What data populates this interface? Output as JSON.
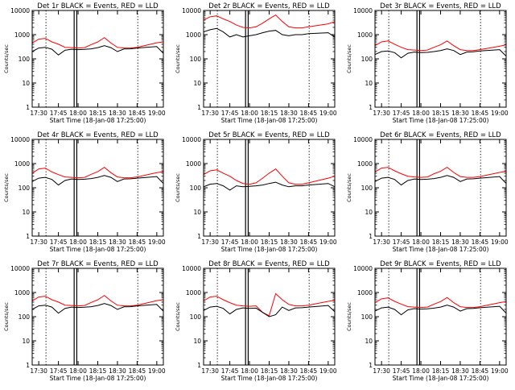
{
  "colors": {
    "background": "#ffffff",
    "events": "#000000",
    "lld": "#ff0000",
    "axis": "#000000"
  },
  "y_tick_labels": [
    "10000",
    "1000",
    "100",
    "10",
    "1"
  ],
  "x_tick_labels": [
    "17:30",
    "17:45",
    "18:00",
    "18:15",
    "18:30",
    "18:45",
    "19:00"
  ],
  "ylabel": "Counts/sec",
  "xlabel": "Start Time (18-Jan-08 17:25:00)",
  "chart_data": [
    {
      "type": "line",
      "title": "Det 1r BLACK = Events, RED = LLD",
      "xlabel": "Start Time (18-Jan-08 17:25:00)",
      "ylabel": "Counts/sec",
      "ylim": [
        1,
        10000
      ],
      "yscale": "log",
      "grid": false,
      "x_minutes_after_1725": [
        0,
        5,
        10,
        15,
        20,
        25,
        30,
        35,
        40,
        45,
        50,
        55,
        60,
        65,
        70,
        75,
        80,
        95,
        100
      ],
      "series": [
        {
          "name": "BLACK = Events",
          "values": [
            200,
            280,
            300,
            250,
            145,
            225,
            250,
            240,
            245,
            260,
            290,
            350,
            290,
            200,
            255,
            260,
            280,
            320,
            170
          ]
        },
        {
          "name": "RED = LLD",
          "values": [
            450,
            650,
            700,
            500,
            400,
            300,
            290,
            280,
            290,
            390,
            500,
            750,
            450,
            300,
            280,
            280,
            300,
            460,
            500
          ]
        }
      ]
    },
    {
      "type": "line",
      "title": "Det 2r BLACK = Events, RED = LLD",
      "xlabel": "Start Time (18-Jan-08 17:25:00)",
      "ylabel": "Counts/sec",
      "ylim": [
        1,
        10000
      ],
      "yscale": "log",
      "grid": false,
      "x_minutes_after_1725": [
        0,
        5,
        10,
        15,
        20,
        25,
        30,
        35,
        40,
        45,
        50,
        55,
        60,
        65,
        70,
        75,
        80,
        95,
        100
      ],
      "series": [
        {
          "name": "BLACK = Events",
          "values": [
            1300,
            1600,
            1800,
            1300,
            800,
            1000,
            800,
            900,
            1000,
            1200,
            1400,
            1500,
            1000,
            900,
            1000,
            1000,
            1100,
            1200,
            800
          ]
        },
        {
          "name": "RED = LLD",
          "values": [
            4000,
            5500,
            6000,
            4500,
            3500,
            2500,
            2000,
            1900,
            2100,
            3000,
            4500,
            6500,
            3500,
            2100,
            1900,
            1900,
            2100,
            2800,
            3500
          ]
        }
      ]
    },
    {
      "type": "line",
      "title": "Det 3r BLACK = Events, RED = LLD",
      "xlabel": "Start Time (18-Jan-08 17:25:00)",
      "ylabel": "Counts/sec",
      "ylim": [
        1,
        10000
      ],
      "yscale": "log",
      "grid": false,
      "x_minutes_after_1725": [
        0,
        5,
        10,
        15,
        20,
        25,
        30,
        35,
        40,
        45,
        50,
        55,
        60,
        65,
        70,
        75,
        80,
        95,
        100
      ],
      "series": [
        {
          "name": "BLACK = Events",
          "values": [
            150,
            200,
            210,
            180,
            110,
            170,
            190,
            180,
            185,
            200,
            220,
            260,
            220,
            150,
            190,
            195,
            210,
            240,
            130
          ]
        },
        {
          "name": "RED = LLD",
          "values": [
            350,
            500,
            550,
            400,
            300,
            240,
            230,
            220,
            230,
            300,
            380,
            550,
            350,
            240,
            220,
            220,
            240,
            330,
            380
          ]
        }
      ]
    },
    {
      "type": "line",
      "title": "Det 4r BLACK = Events, RED = LLD",
      "xlabel": "Start Time (18-Jan-08 17:25:00)",
      "ylabel": "Counts/sec",
      "ylim": [
        1,
        10000
      ],
      "yscale": "log",
      "grid": false,
      "x_minutes_after_1725": [
        0,
        5,
        10,
        15,
        20,
        25,
        30,
        35,
        40,
        45,
        50,
        55,
        60,
        65,
        70,
        75,
        80,
        95,
        100
      ],
      "series": [
        {
          "name": "BLACK = Events",
          "values": [
            180,
            250,
            270,
            220,
            130,
            200,
            230,
            220,
            225,
            240,
            270,
            320,
            270,
            180,
            230,
            235,
            250,
            290,
            150
          ]
        },
        {
          "name": "RED = LLD",
          "values": [
            400,
            600,
            650,
            450,
            350,
            280,
            270,
            260,
            270,
            360,
            460,
            700,
            420,
            280,
            260,
            260,
            280,
            420,
            460
          ]
        }
      ]
    },
    {
      "type": "line",
      "title": "Det 5r BLACK = Events, RED = LLD",
      "xlabel": "Start Time (18-Jan-08 17:25:00)",
      "ylabel": "Counts/sec",
      "ylim": [
        1,
        10000
      ],
      "yscale": "log",
      "grid": false,
      "x_minutes_after_1725": [
        0,
        5,
        10,
        15,
        20,
        25,
        30,
        35,
        40,
        45,
        50,
        55,
        60,
        65,
        70,
        75,
        80,
        95,
        100
      ],
      "series": [
        {
          "name": "BLACK = Events",
          "values": [
            110,
            140,
            150,
            120,
            80,
            120,
            110,
            115,
            120,
            130,
            150,
            170,
            130,
            110,
            120,
            120,
            130,
            150,
            110
          ]
        },
        {
          "name": "RED = LLD",
          "values": [
            350,
            500,
            550,
            400,
            300,
            200,
            150,
            140,
            160,
            250,
            400,
            600,
            300,
            160,
            140,
            140,
            160,
            250,
            300
          ]
        }
      ]
    },
    {
      "type": "line",
      "title": "Det 6r BLACK = Events, RED = LLD",
      "xlabel": "Start Time (18-Jan-08 17:25:00)",
      "ylabel": "Counts/sec",
      "ylim": [
        1,
        10000
      ],
      "yscale": "log",
      "grid": false,
      "x_minutes_after_1725": [
        0,
        5,
        10,
        15,
        20,
        25,
        30,
        35,
        40,
        45,
        50,
        55,
        60,
        65,
        70,
        75,
        80,
        95,
        100
      ],
      "series": [
        {
          "name": "BLACK = Events",
          "values": [
            180,
            250,
            270,
            220,
            130,
            200,
            230,
            220,
            225,
            240,
            270,
            320,
            270,
            180,
            230,
            235,
            250,
            290,
            150
          ]
        },
        {
          "name": "RED = LLD",
          "values": [
            450,
            650,
            700,
            500,
            380,
            300,
            280,
            270,
            280,
            380,
            480,
            700,
            430,
            290,
            270,
            270,
            290,
            430,
            480
          ]
        }
      ]
    },
    {
      "type": "line",
      "title": "Det 7r BLACK = Events, RED = LLD",
      "xlabel": "Start Time (18-Jan-08 17:25:00)",
      "ylabel": "Counts/sec",
      "ylim": [
        1,
        10000
      ],
      "yscale": "log",
      "grid": false,
      "x_minutes_after_1725": [
        0,
        5,
        10,
        15,
        20,
        25,
        30,
        35,
        40,
        45,
        50,
        55,
        60,
        65,
        70,
        75,
        80,
        95,
        100
      ],
      "series": [
        {
          "name": "BLACK = Events",
          "values": [
            200,
            280,
            300,
            250,
            140,
            220,
            250,
            240,
            245,
            260,
            290,
            350,
            290,
            200,
            255,
            260,
            280,
            320,
            170
          ]
        },
        {
          "name": "RED = LLD",
          "values": [
            450,
            650,
            700,
            500,
            400,
            300,
            290,
            280,
            290,
            390,
            500,
            750,
            450,
            300,
            280,
            280,
            300,
            460,
            500
          ]
        }
      ]
    },
    {
      "type": "line",
      "title": "Det 8r BLACK = Events, RED = LLD",
      "xlabel": "Start Time (18-Jan-08 17:25:00)",
      "ylabel": "Counts/sec",
      "ylim": [
        1,
        10000
      ],
      "yscale": "log",
      "grid": false,
      "x_minutes_after_1725": [
        0,
        5,
        10,
        15,
        20,
        25,
        30,
        35,
        40,
        45,
        50,
        55,
        60,
        65,
        70,
        75,
        80,
        95,
        100
      ],
      "series": [
        {
          "name": "BLACK = Events",
          "values": [
            180,
            250,
            270,
            220,
            130,
            200,
            230,
            220,
            225,
            150,
            100,
            120,
            250,
            180,
            230,
            235,
            250,
            290,
            160
          ]
        },
        {
          "name": "RED = LLD",
          "values": [
            450,
            650,
            700,
            500,
            380,
            300,
            280,
            270,
            280,
            150,
            110,
            900,
            500,
            320,
            280,
            280,
            300,
            430,
            480
          ]
        }
      ]
    },
    {
      "type": "line",
      "title": "Det 9r BLACK = Events, RED = LLD",
      "xlabel": "Start Time (18-Jan-08 17:25:00)",
      "ylabel": "Counts/sec",
      "ylim": [
        1,
        10000
      ],
      "yscale": "log",
      "grid": false,
      "x_minutes_after_1725": [
        0,
        5,
        10,
        15,
        20,
        25,
        30,
        35,
        40,
        45,
        50,
        55,
        60,
        65,
        70,
        75,
        80,
        95,
        100
      ],
      "series": [
        {
          "name": "BLACK = Events",
          "values": [
            170,
            230,
            250,
            200,
            120,
            190,
            215,
            205,
            210,
            225,
            250,
            300,
            250,
            170,
            215,
            220,
            235,
            270,
            140
          ]
        },
        {
          "name": "RED = LLD",
          "values": [
            380,
            550,
            600,
            430,
            330,
            260,
            250,
            240,
            250,
            330,
            420,
            620,
            380,
            260,
            240,
            240,
            260,
            380,
            420
          ]
        }
      ]
    }
  ]
}
